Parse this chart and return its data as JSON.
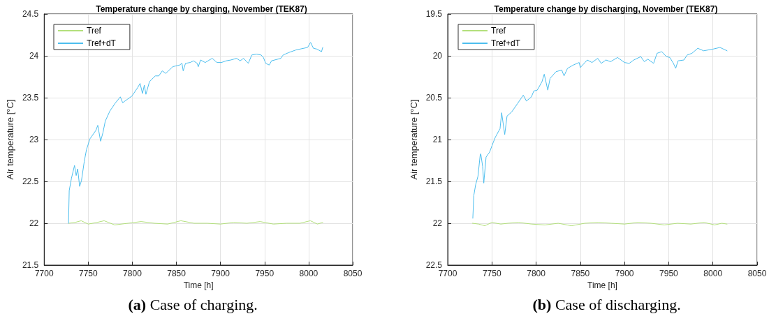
{
  "chart_data": [
    {
      "type": "line",
      "title": "Temperature change by charging, November (TEK87)",
      "xlabel": "Time [h]",
      "ylabel": "Air temperature [°C]",
      "annotations": [
        "(a) Case of charging."
      ],
      "xlim": [
        7700,
        8050
      ],
      "xticks": [
        7700,
        7750,
        7800,
        7850,
        7900,
        7950,
        8000,
        8050
      ],
      "ylim": [
        21.5,
        24.5
      ],
      "yticks": [
        21.5,
        22,
        22.5,
        23,
        23.5,
        24,
        24.5
      ],
      "grid": true,
      "legend": "top left",
      "marker": "none",
      "line_style": "solid",
      "series": [
        {
          "name": "Tref",
          "color": "#b3e07c",
          "x": [
            7728,
            7735,
            7742,
            7750,
            7760,
            7768,
            7780,
            7795,
            7810,
            7825,
            7840,
            7855,
            7870,
            7885,
            7900,
            7915,
            7930,
            7945,
            7960,
            7975,
            7990,
            8002,
            8010,
            8016
          ],
          "values": [
            22.0,
            22.01,
            22.03,
            21.99,
            22.01,
            22.03,
            21.98,
            22.0,
            22.02,
            22.0,
            21.99,
            22.03,
            22.0,
            22.0,
            21.99,
            22.01,
            22.0,
            22.02,
            21.99,
            22.0,
            22.0,
            22.03,
            21.99,
            22.01
          ]
        },
        {
          "name": "Tref+dT",
          "color": "#4dbeee",
          "x": [
            7727.6,
            7728.4,
            7731,
            7734.4,
            7736.3,
            7738,
            7740.2,
            7742.3,
            7745.5,
            7748,
            7752,
            7758.7,
            7760.8,
            7764,
            7766.6,
            7769.3,
            7774.5,
            7781,
            7786.4,
            7789,
            7794.3,
            7799.6,
            7806,
            7808.8,
            7811.5,
            7813.6,
            7815.4,
            7819.4,
            7826,
            7830,
            7834,
            7837.9,
            7845.8,
            7853.7,
            7856.3,
            7857.7,
            7860.3,
            7865.6,
            7869.5,
            7873.5,
            7874.8,
            7877.4,
            7882.7,
            7890.6,
            7895.9,
            7901,
            7906.5,
            7911.7,
            7918.3,
            7922.3,
            7926.2,
            7931.5,
            7935.5,
            7940.8,
            7946,
            7948.7,
            7951.3,
            7955.3,
            7957.9,
            7968.5,
            7971.1,
            7977.7,
            7985.6,
            7998.8,
            8002.2,
            8005.4,
            8009.4,
            8014.6,
            8016
          ],
          "values": [
            22.0,
            22.39,
            22.54,
            22.69,
            22.57,
            22.65,
            22.44,
            22.51,
            22.74,
            22.88,
            23.01,
            23.11,
            23.17,
            22.98,
            23.08,
            23.22,
            23.34,
            23.44,
            23.51,
            23.44,
            23.48,
            23.52,
            23.62,
            23.67,
            23.55,
            23.65,
            23.54,
            23.69,
            23.76,
            23.76,
            23.82,
            23.79,
            23.87,
            23.89,
            23.91,
            23.82,
            23.91,
            23.92,
            23.94,
            23.91,
            23.87,
            23.95,
            23.92,
            23.97,
            23.92,
            23.92,
            23.94,
            23.95,
            23.97,
            23.94,
            23.97,
            23.91,
            24.01,
            24.02,
            24.01,
            23.98,
            23.91,
            23.89,
            23.94,
            23.97,
            24.01,
            24.04,
            24.07,
            24.1,
            24.16,
            24.09,
            24.08,
            24.05,
            24.1
          ]
        }
      ]
    },
    {
      "type": "line",
      "title": "Temperature change by discharging, November (TEK87)",
      "xlabel": "Time [h]",
      "ylabel": "Air temperature [°C]",
      "annotations": [
        "(b) Case of discharging."
      ],
      "xlim": [
        7700,
        8050
      ],
      "xticks": [
        7700,
        7750,
        7800,
        7850,
        7900,
        7950,
        8000,
        8050
      ],
      "ylim": [
        22.5,
        19.5
      ],
      "yticks": [
        19.5,
        20,
        20.5,
        21,
        21.5,
        22,
        22.5
      ],
      "grid": true,
      "legend": "top left",
      "marker": "none",
      "line_style": "solid",
      "series": [
        {
          "name": "Tref",
          "color": "#b3e07c",
          "x": [
            7728,
            7735,
            7742,
            7750,
            7760,
            7768,
            7780,
            7795,
            7810,
            7825,
            7840,
            7855,
            7870,
            7885,
            7900,
            7915,
            7930,
            7945,
            7960,
            7975,
            7990,
            8002,
            8010,
            8016
          ],
          "values": [
            22.0,
            22.01,
            22.03,
            21.99,
            22.01,
            22.0,
            21.99,
            22.01,
            22.02,
            22.0,
            22.03,
            22.0,
            21.99,
            22.0,
            22.01,
            21.99,
            22.0,
            22.02,
            22.0,
            22.01,
            21.99,
            22.02,
            22.0,
            22.01
          ]
        },
        {
          "name": "Tref+dT",
          "color": "#4dbeee",
          "x": [
            7728.4,
            7729.5,
            7731.6,
            7734.2,
            7736.8,
            7737.4,
            7739.5,
            7740.8,
            7743.4,
            7747.4,
            7751.3,
            7754,
            7759.2,
            7761,
            7764.5,
            7767.1,
            7772.4,
            7779,
            7785.5,
            7789,
            7794.7,
            7797.4,
            7801.3,
            7806.6,
            7809.2,
            7813.2,
            7815.8,
            7822.4,
            7829,
            7831.6,
            7835.5,
            7842.1,
            7848.7,
            7850,
            7857.9,
            7863.2,
            7869.7,
            7873.7,
            7879,
            7884.2,
            7892.1,
            7900,
            7905.3,
            7910.5,
            7918.4,
            7922.4,
            7926.3,
            7932.9,
            7936.8,
            7942.1,
            7947.4,
            7951.3,
            7955.3,
            7957.9,
            7960.5,
            7967.1,
            7971,
            7976.3,
            7982.9,
            7989.5,
            8000,
            8008,
            8016
          ],
          "values": [
            21.94,
            21.67,
            21.54,
            21.44,
            21.18,
            21.17,
            21.32,
            21.52,
            21.21,
            21.15,
            21.04,
            20.97,
            20.87,
            20.68,
            20.94,
            20.72,
            20.67,
            20.57,
            20.47,
            20.54,
            20.49,
            20.42,
            20.41,
            20.31,
            20.22,
            20.41,
            20.27,
            20.19,
            20.17,
            20.24,
            20.15,
            20.11,
            20.08,
            20.14,
            20.05,
            20.08,
            20.03,
            20.09,
            20.05,
            20.07,
            20.02,
            20.08,
            20.09,
            20.05,
            20.01,
            20.07,
            20.04,
            20.09,
            19.97,
            19.95,
            20.01,
            20.02,
            20.09,
            20.15,
            20.06,
            20.05,
            19.99,
            19.97,
            19.91,
            19.94,
            19.92,
            19.9,
            19.94
          ]
        }
      ]
    }
  ]
}
